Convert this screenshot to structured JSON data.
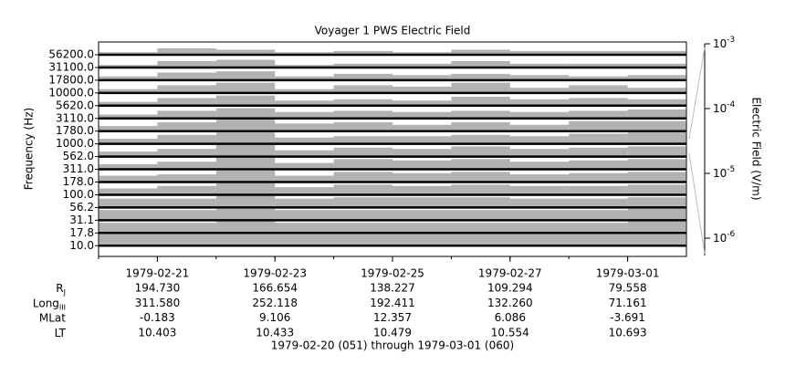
{
  "chart_data": {
    "type": "stack-line",
    "title": "Voyager 1 PWS Electric Field",
    "ylabel": "Frequency (Hz)",
    "y2label": "Electric Field (V/m)",
    "x": [
      "1979-02-20",
      "1979-02-21",
      "1979-02-22",
      "1979-02-23",
      "1979-02-24",
      "1979-02-25",
      "1979-02-26",
      "1979-02-27",
      "1979-02-28",
      "1979-03-01"
    ],
    "xlim": [
      "1979-02-20",
      "1979-03-02"
    ],
    "xticks": [
      "1979-02-21",
      "1979-02-23",
      "1979-02-25",
      "1979-02-27",
      "1979-03-01"
    ],
    "ylim": [
      0,
      1
    ],
    "y2scale": "log",
    "y2lim": [
      5.4e-07,
      0.001
    ],
    "y2ticks": [
      {
        "value": 0.001,
        "label": "10",
        "exponent": "-3"
      },
      {
        "value": 0.0001,
        "label": "10",
        "exponent": "-4"
      },
      {
        "value": 1e-05,
        "label": "10",
        "exponent": "-5"
      },
      {
        "value": 1e-06,
        "label": "10",
        "exponent": "-6"
      }
    ],
    "color": "#000000",
    "series": [
      {
        "name": "56200.0",
        "values": [
          0.2,
          0.5,
          0.4,
          0.2,
          0.3,
          0.2,
          0.4,
          0.3,
          0.3,
          0.3
        ]
      },
      {
        "name": "31100.0",
        "values": [
          0.2,
          0.5,
          0.6,
          0.2,
          0.3,
          0.3,
          0.5,
          0.3,
          0.3,
          0.3
        ]
      },
      {
        "name": "17800.0",
        "values": [
          0.3,
          0.6,
          0.7,
          0.3,
          0.5,
          0.4,
          0.5,
          0.4,
          0.3,
          0.4
        ]
      },
      {
        "name": "10000.0",
        "values": [
          0.3,
          0.6,
          0.8,
          0.3,
          0.6,
          0.5,
          0.8,
          0.4,
          0.6,
          0.4
        ]
      },
      {
        "name": "5620.0",
        "values": [
          0.3,
          0.6,
          0.8,
          0.4,
          0.5,
          0.4,
          0.7,
          0.5,
          0.6,
          0.5
        ]
      },
      {
        "name": "3110.0",
        "values": [
          0.3,
          0.6,
          0.8,
          0.5,
          0.6,
          0.5,
          0.6,
          0.5,
          0.6,
          0.7
        ]
      },
      {
        "name": "1780.0",
        "values": [
          0.4,
          0.7,
          0.9,
          0.6,
          0.7,
          0.5,
          0.7,
          0.5,
          0.8,
          0.8
        ]
      },
      {
        "name": "1000.0",
        "values": [
          0.4,
          0.7,
          0.9,
          0.5,
          0.6,
          0.6,
          0.7,
          0.6,
          0.8,
          0.9
        ]
      },
      {
        "name": "562.0",
        "values": [
          0.4,
          0.6,
          0.9,
          0.5,
          0.7,
          0.6,
          0.8,
          0.6,
          0.7,
          0.8
        ]
      },
      {
        "name": "311.0",
        "values": [
          0.4,
          0.6,
          0.9,
          0.5,
          0.8,
          0.7,
          0.8,
          0.6,
          0.7,
          0.8
        ]
      },
      {
        "name": "178.0",
        "values": [
          0.5,
          0.6,
          0.9,
          0.5,
          0.8,
          0.7,
          0.8,
          0.6,
          0.7,
          0.8
        ]
      },
      {
        "name": "100.0",
        "values": [
          0.5,
          0.7,
          0.9,
          0.6,
          0.8,
          0.7,
          0.8,
          0.7,
          0.7,
          0.8
        ]
      },
      {
        "name": "56.2",
        "values": [
          0.7,
          0.7,
          0.9,
          0.7,
          0.8,
          0.8,
          0.8,
          0.7,
          0.7,
          0.8
        ]
      },
      {
        "name": "31.1",
        "values": [
          0.8,
          0.8,
          0.9,
          0.8,
          0.8,
          0.8,
          0.8,
          0.8,
          0.8,
          0.9
        ]
      },
      {
        "name": "17.8",
        "values": [
          0.8,
          0.8,
          0.9,
          0.8,
          0.8,
          0.8,
          0.8,
          0.8,
          0.8,
          0.9
        ]
      },
      {
        "name": "10.0",
        "values": [
          0.9,
          0.9,
          0.9,
          0.9,
          0.9,
          0.9,
          0.9,
          0.9,
          0.9,
          0.9
        ]
      }
    ],
    "ephemeris": [
      {
        "label": "R",
        "sub": "J",
        "values": [
          "194.730",
          "166.654",
          "138.227",
          "109.294",
          "79.558"
        ]
      },
      {
        "label": "Long",
        "sub": "III",
        "values": [
          "311.580",
          "252.118",
          "192.411",
          "132.260",
          "71.161"
        ]
      },
      {
        "label": "MLat",
        "values": [
          "-0.183",
          "9.106",
          "12.357",
          "6.086",
          "-3.691"
        ]
      },
      {
        "label": "LT",
        "values": [
          "10.403",
          "10.433",
          "10.479",
          "10.554",
          "10.693"
        ]
      }
    ],
    "footer": "1979-02-20 (051) through 1979-03-01 (060)"
  }
}
